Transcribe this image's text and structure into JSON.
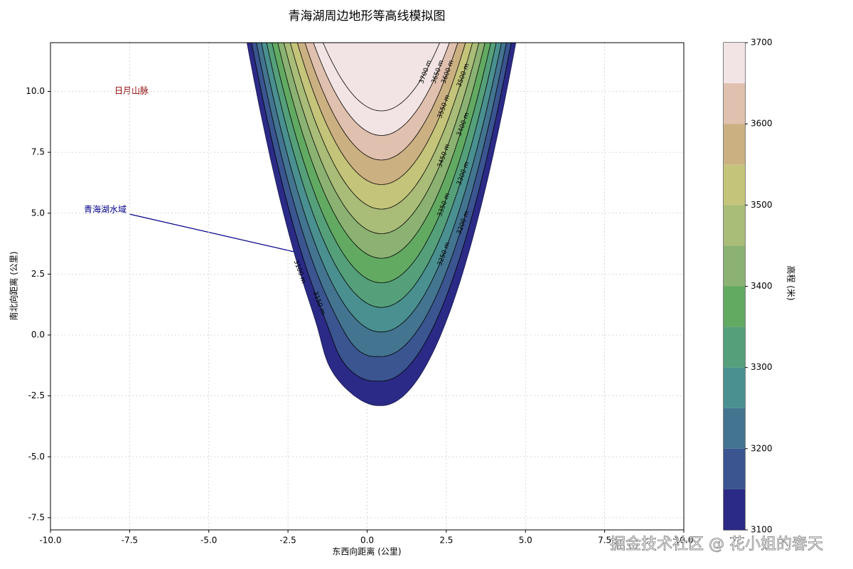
{
  "chart_data": {
    "type": "contour",
    "title": "青海湖周边地形等高线模拟图",
    "xlabel": "东西向距离 (公里)",
    "ylabel": "南北向距离 (公里)",
    "colorbar_label": "高程 (米)",
    "levels": [
      3100,
      3150,
      3200,
      3250,
      3300,
      3350,
      3400,
      3450,
      3500,
      3550,
      3600,
      3650,
      3700
    ],
    "level_labels": [
      "3100 m",
      "3150 m",
      "3200 m",
      "3250 m",
      "3300 m",
      "3350 m",
      "3400 m",
      "3450 m",
      "3500 m",
      "3550 m",
      "3600 m",
      "3650 m",
      "3700 m"
    ],
    "colors": [
      "#2b2a86",
      "#3a5590",
      "#437490",
      "#4a9090",
      "#55a07a",
      "#62aa62",
      "#8bb272",
      "#a9bc78",
      "#c4c47a",
      "#cbb082",
      "#e0c0ae",
      "#f2e4e4"
    ],
    "xlim": [
      -10,
      10
    ],
    "ylim": [
      -8,
      12
    ],
    "xticks": [
      {
        "value": -10,
        "label": "-10.0"
      },
      {
        "value": -7.5,
        "label": "-7.5"
      },
      {
        "value": -5,
        "label": "-5.0"
      },
      {
        "value": -2.5,
        "label": "-2.5"
      },
      {
        "value": 0,
        "label": "0.0"
      },
      {
        "value": 2.5,
        "label": "2.5"
      },
      {
        "value": 5,
        "label": "5.0"
      },
      {
        "value": 7.5,
        "label": "7.5"
      },
      {
        "value": 10,
        "label": "10.0"
      }
    ],
    "yticks": [
      {
        "value": -7.5,
        "label": "-7.5"
      },
      {
        "value": -5,
        "label": "-5.0"
      },
      {
        "value": -2.5,
        "label": "-2.5"
      },
      {
        "value": 0,
        "label": "0.0"
      },
      {
        "value": 2.5,
        "label": "2.5"
      },
      {
        "value": 5,
        "label": "5.0"
      },
      {
        "value": 7.5,
        "label": "7.5"
      },
      {
        "value": 10,
        "label": "10.0"
      }
    ],
    "clim": [
      3100,
      3700
    ],
    "cticks": [
      3100,
      3200,
      3300,
      3400,
      3500,
      3600,
      3700
    ],
    "grid": true,
    "annotations": [
      "日月山脉",
      "青海湖水域"
    ],
    "watermark": "掘金技术社区 @ 花小姐的春天"
  }
}
